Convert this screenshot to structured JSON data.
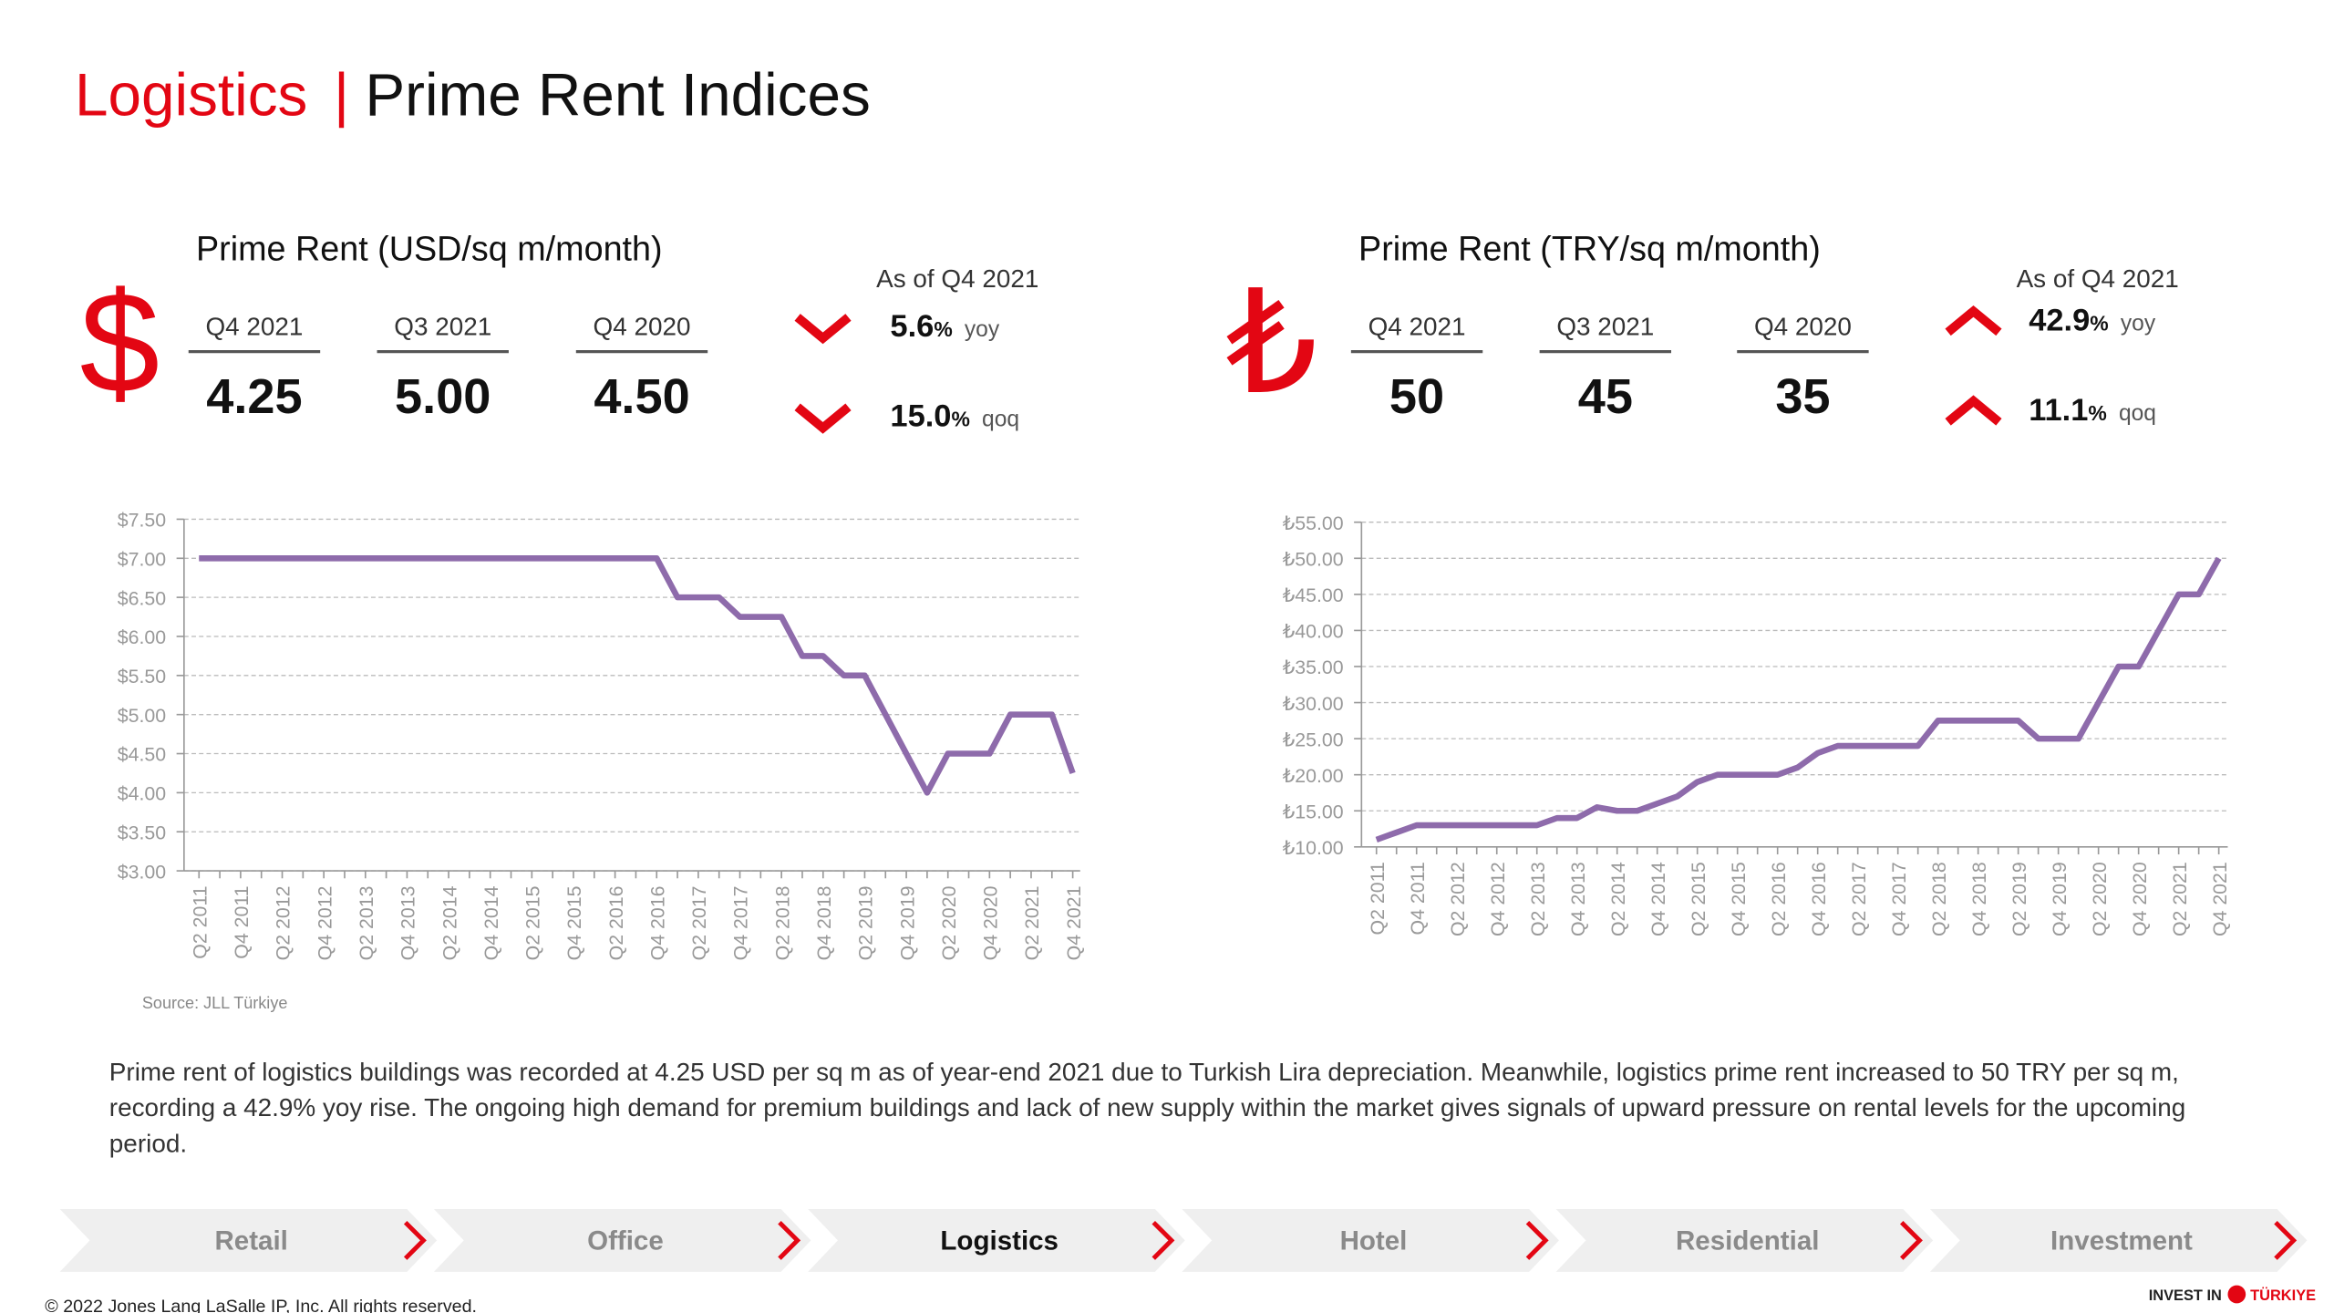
{
  "header": {
    "section": "Logistics",
    "separator": "|",
    "title": "Prime Rent Indices"
  },
  "panels": [
    {
      "heading": "Prime Rent (USD/sq m/month)",
      "symbol": "$",
      "columns": [
        {
          "label": "Q4 2021",
          "value": "4.25"
        },
        {
          "label": "Q3 2021",
          "value": "5.00"
        },
        {
          "label": "Q4 2020",
          "value": "4.50"
        }
      ],
      "as_of": "As of Q4 2021",
      "direction": "down",
      "changes": [
        {
          "value": "5.6",
          "unit": "%",
          "label": "yoy"
        },
        {
          "value": "15.0",
          "unit": "%",
          "label": "qoq"
        }
      ]
    },
    {
      "heading": "Prime Rent (TRY/sq m/month)",
      "symbol": "₺",
      "columns": [
        {
          "label": "Q4 2021",
          "value": "50"
        },
        {
          "label": "Q3 2021",
          "value": "45"
        },
        {
          "label": "Q4 2020",
          "value": "35"
        }
      ],
      "as_of": "As of Q4 2021",
      "direction": "up",
      "changes": [
        {
          "value": "42.9",
          "unit": "%",
          "label": "yoy"
        },
        {
          "value": "11.1",
          "unit": "%",
          "label": "qoq"
        }
      ]
    }
  ],
  "chart_data": [
    {
      "type": "line",
      "color": "#8e6bab",
      "grid": true,
      "categories": [
        "Q2 2011",
        null,
        "Q4 2011",
        null,
        "Q2 2012",
        null,
        "Q4 2012",
        null,
        "Q2 2013",
        null,
        "Q4 2013",
        null,
        "Q2 2014",
        null,
        "Q4 2014",
        null,
        "Q2 2015",
        null,
        "Q4 2015",
        null,
        "Q2 2016",
        null,
        "Q4 2016",
        null,
        "Q2 2017",
        null,
        "Q4 2017",
        null,
        "Q2 2018",
        null,
        "Q4 2018",
        null,
        "Q2 2019",
        null,
        "Q4 2019",
        null,
        "Q2 2020",
        null,
        "Q4 2020",
        null,
        "Q2 2021",
        null,
        "Q4 2021"
      ],
      "values": [
        7,
        7,
        7,
        7,
        7,
        7,
        7,
        7,
        7,
        7,
        7,
        7,
        7,
        7,
        7,
        7,
        7,
        7,
        7,
        7,
        7,
        7,
        7,
        6.5,
        6.5,
        6.5,
        6.25,
        6.25,
        6.25,
        5.75,
        5.75,
        5.5,
        5.5,
        5,
        4.5,
        4,
        4.5,
        4.5,
        4.5,
        5,
        5,
        5,
        4.25
      ],
      "ylim": [
        3,
        7.5
      ],
      "yticks": [
        {
          "value": 3,
          "label": "$3.00"
        },
        {
          "value": 3.5,
          "label": "$3.50"
        },
        {
          "value": 4,
          "label": "$4.00"
        },
        {
          "value": 4.5,
          "label": "$4.50"
        },
        {
          "value": 5,
          "label": "$5.00"
        },
        {
          "value": 5.5,
          "label": "$5.50"
        },
        {
          "value": 6,
          "label": "$6.00"
        },
        {
          "value": 6.5,
          "label": "$6.50"
        },
        {
          "value": 7,
          "label": "$7.00"
        },
        {
          "value": 7.5,
          "label": "$7.50"
        }
      ]
    },
    {
      "type": "line",
      "color": "#8e6bab",
      "grid": true,
      "categories": [
        "Q2 2011",
        null,
        "Q4 2011",
        null,
        "Q2 2012",
        null,
        "Q4 2012",
        null,
        "Q2 2013",
        null,
        "Q4 2013",
        null,
        "Q2 2014",
        null,
        "Q4 2014",
        null,
        "Q2 2015",
        null,
        "Q4 2015",
        null,
        "Q2 2016",
        null,
        "Q4 2016",
        null,
        "Q2 2017",
        null,
        "Q4 2017",
        null,
        "Q2 2018",
        null,
        "Q4 2018",
        null,
        "Q2 2019",
        null,
        "Q4 2019",
        null,
        "Q2 2020",
        null,
        "Q4 2020",
        null,
        "Q2 2021",
        null,
        "Q4 2021"
      ],
      "values": [
        11,
        12,
        13,
        13,
        13,
        13,
        13,
        13,
        13,
        14,
        14,
        15.5,
        15,
        15,
        16,
        17,
        19,
        20,
        20,
        20,
        20,
        21,
        23,
        24,
        24,
        24,
        24,
        24,
        27.5,
        27.5,
        27.5,
        27.5,
        27.5,
        25,
        25,
        25,
        30,
        35,
        35,
        40,
        45,
        45,
        50
      ],
      "ylim": [
        10,
        55
      ],
      "yticks": [
        {
          "value": 10,
          "label": "₺10.00"
        },
        {
          "value": 15,
          "label": "₺15.00"
        },
        {
          "value": 20,
          "label": "₺20.00"
        },
        {
          "value": 25,
          "label": "₺25.00"
        },
        {
          "value": 30,
          "label": "₺30.00"
        },
        {
          "value": 35,
          "label": "₺35.00"
        },
        {
          "value": 40,
          "label": "₺40.00"
        },
        {
          "value": 45,
          "label": "₺45.00"
        },
        {
          "value": 50,
          "label": "₺50.00"
        },
        {
          "value": 55,
          "label": "₺55.00"
        }
      ]
    }
  ],
  "source": "Source: JLL Türkiye",
  "paragraph": "Prime rent of logistics buildings was recorded at 4.25 USD per sq m as of year-end 2021 due to Turkish Lira depreciation. Meanwhile, logistics prime rent increased to 50 TRY per sq m, recording a 42.9% yoy rise. The ongoing high demand for premium buildings and lack of new supply within the market gives signals of upward pressure on rental levels for the upcoming period.",
  "nav": {
    "items": [
      "Retail",
      "Office",
      "Logistics",
      "Hotel",
      "Residential",
      "Investment"
    ],
    "active": 2
  },
  "footer": {
    "copyright": "© 2022 Jones Lang LaSalle IP, Inc. All rights reserved.",
    "logo_left": "INVEST IN",
    "logo_right": "TÜRKIYE"
  }
}
